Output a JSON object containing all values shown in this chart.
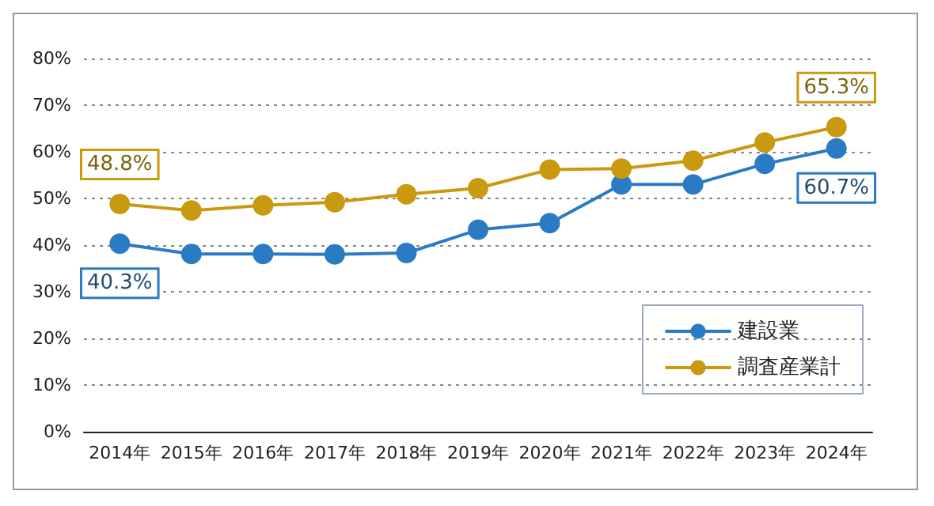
{
  "chart_data": {
    "type": "line",
    "categories": [
      "2014年",
      "2015年",
      "2016年",
      "2017年",
      "2018年",
      "2019年",
      "2020年",
      "2021年",
      "2022年",
      "2023年",
      "2024年"
    ],
    "series": [
      {
        "name": "建設業",
        "color": "#2b7bc4",
        "values": [
          40.3,
          38.1,
          38.1,
          38.0,
          38.3,
          43.3,
          44.7,
          53.0,
          53.0,
          57.4,
          60.7
        ],
        "value_labels": [
          "40.3%",
          null,
          null,
          null,
          null,
          null,
          null,
          null,
          null,
          null,
          "60.7%"
        ]
      },
      {
        "name": "調査産業計",
        "color": "#c9990f",
        "values": [
          48.8,
          47.4,
          48.5,
          49.2,
          50.9,
          52.2,
          56.2,
          56.4,
          58.1,
          62.0,
          65.3
        ],
        "value_labels": [
          "48.8%",
          null,
          null,
          null,
          null,
          null,
          null,
          null,
          null,
          null,
          "65.3%"
        ]
      }
    ],
    "ylim": [
      0,
      80
    ],
    "yticks": [
      {
        "value": 0,
        "label": "0%"
      },
      {
        "value": 10,
        "label": "10%"
      },
      {
        "value": 20,
        "label": "20%"
      },
      {
        "value": 30,
        "label": "30%"
      },
      {
        "value": 40,
        "label": "40%"
      },
      {
        "value": 50,
        "label": "50%"
      },
      {
        "value": 60,
        "label": "60%"
      },
      {
        "value": 70,
        "label": "70%"
      },
      {
        "value": 80,
        "label": "80%"
      }
    ],
    "grid": "y",
    "legend": "bottom right",
    "marker": "circle",
    "line_style": "solid"
  }
}
